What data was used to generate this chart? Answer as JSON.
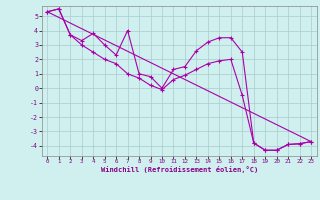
{
  "xlabel": "Windchill (Refroidissement éolien,°C)",
  "bg_color": "#cff0ee",
  "line_color": "#aa00aa",
  "grid_color": "#aacccc",
  "xlim": [
    -0.5,
    23.5
  ],
  "ylim": [
    -4.7,
    5.7
  ],
  "yticks": [
    -4,
    -3,
    -2,
    -1,
    0,
    1,
    2,
    3,
    4,
    5
  ],
  "xticks": [
    0,
    1,
    2,
    3,
    4,
    5,
    6,
    7,
    8,
    9,
    10,
    11,
    12,
    13,
    14,
    15,
    16,
    17,
    18,
    19,
    20,
    21,
    22,
    23
  ],
  "line1_x": [
    0,
    1,
    2,
    3,
    4,
    5,
    6,
    7,
    8,
    9,
    10,
    11,
    12,
    13,
    14,
    15,
    16,
    17,
    18,
    19,
    20,
    21,
    22,
    23
  ],
  "line1_y": [
    5.3,
    5.5,
    3.7,
    3.3,
    3.8,
    3.0,
    2.3,
    4.0,
    1.0,
    0.8,
    0.0,
    1.3,
    1.5,
    2.6,
    3.2,
    3.5,
    3.5,
    2.5,
    -3.8,
    -4.3,
    -4.3,
    -3.9,
    -3.85,
    -3.7
  ],
  "line2_x": [
    0,
    1,
    2,
    3,
    4,
    5,
    6,
    7,
    8,
    9,
    10,
    11,
    12,
    13,
    14,
    15,
    16,
    17,
    18,
    19,
    20,
    21,
    22,
    23
  ],
  "line2_y": [
    5.3,
    5.5,
    3.7,
    3.0,
    2.5,
    2.0,
    1.7,
    1.0,
    0.7,
    0.2,
    -0.1,
    0.6,
    0.9,
    1.3,
    1.7,
    1.9,
    2.0,
    -0.5,
    -3.8,
    -4.3,
    -4.3,
    -3.9,
    -3.85,
    -3.7
  ],
  "trend_x": [
    0,
    23
  ],
  "trend_y": [
    5.3,
    -3.7
  ]
}
